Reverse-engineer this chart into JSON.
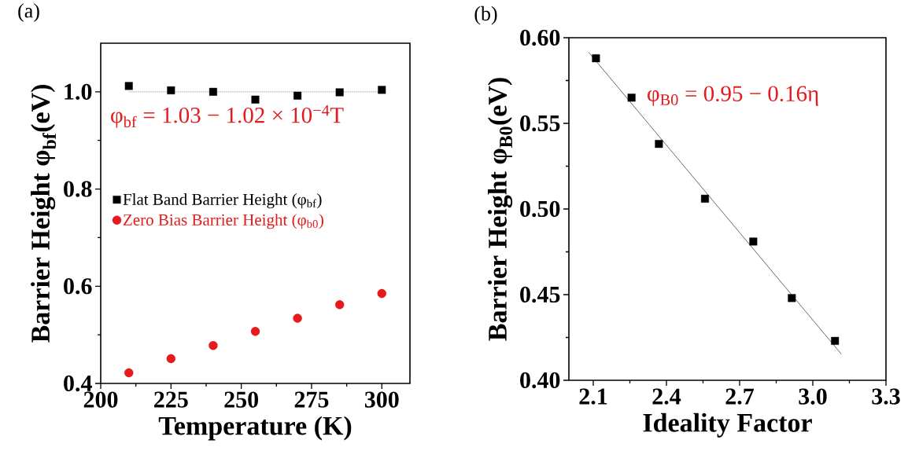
{
  "chart_data": [
    {
      "type": "scatter",
      "xlabel": "Temperature (K)",
      "ylabel": "Barrier Height φ$_{bf}$(eV)",
      "xlim": [
        200,
        310
      ],
      "ylim": [
        0.4,
        1.1
      ],
      "xticks": [
        200,
        225,
        250,
        275,
        300,
        {
          "value": 212.5,
          "label": null
        },
        {
          "value": 237.5,
          "label": null
        },
        {
          "value": 262.5,
          "label": null
        },
        {
          "value": 287.5,
          "label": null
        }
      ],
      "yticks": [
        0.4,
        0.6,
        0.8,
        {
          "value": 1.0,
          "label": "1.0"
        },
        {
          "value": 0.5,
          "label": null
        },
        {
          "value": 0.7,
          "label": null
        },
        {
          "value": 0.9,
          "label": null
        }
      ],
      "x": [
        210,
        225,
        240,
        255,
        270,
        285,
        300
      ],
      "series": [
        {
          "name": "Flat Band Barrier Height (φ$_{bf}$)",
          "color": "#000000",
          "marker": "square",
          "values": [
            1.012,
            1.003,
            1.0,
            0.984,
            0.992,
            0.999,
            1.004
          ]
        },
        {
          "name": "Zero Bias Barrier Height (φ$_{b0}$)",
          "color": "#e41a1c",
          "marker": "circle",
          "values": [
            0.422,
            0.451,
            0.478,
            0.507,
            0.534,
            0.562,
            0.585
          ]
        },
        {
          "type": "line",
          "color": "#000000",
          "line_style": "dotted",
          "marker": "none",
          "x": [
            210,
            300
          ],
          "values": [
            1.0,
            1.0
          ]
        }
      ],
      "legend": "left",
      "annotations": [
        "(a)",
        "φ$_{bf}$ = 1.03 − 1.02 × 10$^{−4}$T"
      ]
    },
    {
      "type": "scatter",
      "xlabel": "Ideality Factor",
      "ylabel": "Barrier Height φ$_{B0}$(eV)",
      "xlim": [
        2.0,
        3.3
      ],
      "ylim": [
        0.4,
        0.6
      ],
      "xticks": [
        2.1,
        2.4,
        2.7,
        {
          "value": 3.0,
          "label": "3.0"
        },
        3.3,
        {
          "value": 2.25,
          "label": null
        },
        {
          "value": 2.55,
          "label": null
        },
        {
          "value": 2.85,
          "label": null
        },
        {
          "value": 3.15,
          "label": null
        }
      ],
      "yticks": [
        {
          "value": 0.4,
          "label": "0.40"
        },
        0.45,
        {
          "value": 0.5,
          "label": "0.50"
        },
        0.55,
        {
          "value": 0.6,
          "label": "0.60"
        },
        {
          "value": 0.425,
          "label": null
        },
        {
          "value": 0.475,
          "label": null
        },
        {
          "value": 0.525,
          "label": null
        },
        {
          "value": 0.575,
          "label": null
        }
      ],
      "series": [
        {
          "color": "#000000",
          "marker": "square",
          "x": [
            2.111,
            2.257,
            2.369,
            2.558,
            2.756,
            2.914,
            3.091
          ],
          "values": [
            0.588,
            0.565,
            0.538,
            0.506,
            0.481,
            0.448,
            0.423
          ]
        },
        {
          "type": "line",
          "color": "#000000",
          "line_style": "solid",
          "marker": "none",
          "x": [
            2.081,
            3.117
          ],
          "values": [
            0.5915,
            0.4153
          ]
        }
      ],
      "annotations": [
        "(b)",
        "φ$_{B0}$ = 0.95 − 0.16η"
      ]
    }
  ]
}
